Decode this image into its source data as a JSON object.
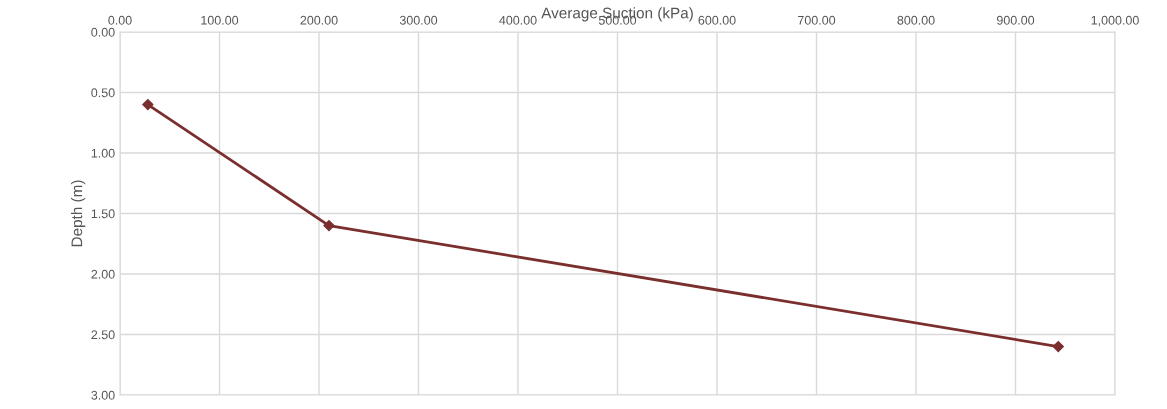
{
  "chart_data": {
    "type": "line",
    "xlabel": "Average Suction (kPa)",
    "ylabel": "Depth (m)",
    "x": [
      28,
      210,
      943
    ],
    "series": [
      {
        "color": "#7a2e2e",
        "values": [
          0.6,
          1.6,
          2.6
        ]
      }
    ],
    "marker": "diamond",
    "line_style": "solid",
    "grid": true,
    "legend": false,
    "xlim": [
      0,
      1000
    ],
    "xticks": [
      {
        "value": 0,
        "label": "0.00"
      },
      {
        "value": 100,
        "label": "100.00"
      },
      {
        "value": 200,
        "label": "200.00"
      },
      {
        "value": 300,
        "label": "300.00"
      },
      {
        "value": 400,
        "label": "400.00"
      },
      {
        "value": 500,
        "label": "500.00"
      },
      {
        "value": 600,
        "label": "600.00"
      },
      {
        "value": 700,
        "label": "700.00"
      },
      {
        "value": 800,
        "label": "800.00"
      },
      {
        "value": 900,
        "label": "900.00"
      },
      {
        "value": 1000,
        "label": "1,000.00"
      }
    ],
    "ylim": [
      3,
      0
    ],
    "yticks": [
      {
        "value": 0,
        "label": "0.00"
      },
      {
        "value": 0.5,
        "label": "0.50"
      },
      {
        "value": 1,
        "label": "1.00"
      },
      {
        "value": 1.5,
        "label": "1.50"
      },
      {
        "value": 2,
        "label": "2.00"
      },
      {
        "value": 2.5,
        "label": "2.50"
      },
      {
        "value": 3,
        "label": "3.00"
      }
    ]
  }
}
